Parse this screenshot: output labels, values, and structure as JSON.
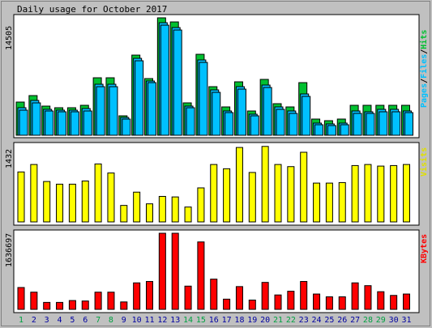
{
  "chart_data": [
    {
      "type": "bar",
      "title": "Daily usage for October 2017",
      "ymax_label": "14505",
      "ylim": [
        0,
        14505
      ],
      "legend": {
        "pages": "Pages",
        "files": "Files",
        "hits": "Hits",
        "sep": "/"
      },
      "categories": [
        "1",
        "2",
        "3",
        "4",
        "5",
        "6",
        "7",
        "8",
        "9",
        "10",
        "11",
        "12",
        "13",
        "14",
        "15",
        "16",
        "17",
        "18",
        "19",
        "20",
        "21",
        "22",
        "23",
        "24",
        "25",
        "26",
        "27",
        "28",
        "29",
        "30",
        "31"
      ],
      "weekend_days": [
        "1",
        "7",
        "8",
        "14",
        "15",
        "21",
        "22",
        "28",
        "29"
      ],
      "series": [
        {
          "name": "Hits",
          "values": [
            4100,
            4900,
            3600,
            3400,
            3400,
            3700,
            7100,
            7100,
            2400,
            9900,
            7000,
            14505,
            14000,
            4000,
            10000,
            6000,
            3500,
            6600,
            3000,
            6900,
            3900,
            3500,
            6500,
            2000,
            1800,
            2000,
            3700,
            3700,
            3700,
            3700,
            3700
          ]
        },
        {
          "name": "Files",
          "values": [
            3400,
            4300,
            3200,
            3100,
            3100,
            3300,
            6300,
            6300,
            2200,
            9500,
            6700,
            13900,
            13300,
            3600,
            9300,
            5600,
            3000,
            6000,
            2600,
            6200,
            3500,
            3000,
            5100,
            1500,
            1400,
            1500,
            3000,
            2900,
            3200,
            3200,
            3000
          ]
        },
        {
          "name": "Pages",
          "values": [
            3100,
            4000,
            3000,
            2900,
            2900,
            3000,
            6000,
            6000,
            2000,
            9200,
            6500,
            13600,
            13000,
            3400,
            9000,
            5300,
            2800,
            5700,
            2400,
            5900,
            3200,
            2700,
            4800,
            1300,
            1200,
            1300,
            2700,
            2700,
            2900,
            2900,
            2800
          ]
        }
      ]
    },
    {
      "type": "bar",
      "ymax_label": "1432",
      "ylim": [
        0,
        1432
      ],
      "legend": "Visits",
      "categories": [
        "1",
        "2",
        "3",
        "4",
        "5",
        "6",
        "7",
        "8",
        "9",
        "10",
        "11",
        "12",
        "13",
        "14",
        "15",
        "16",
        "17",
        "18",
        "19",
        "20",
        "21",
        "22",
        "23",
        "24",
        "25",
        "26",
        "27",
        "28",
        "29",
        "30",
        "31"
      ],
      "series": [
        {
          "name": "Visits",
          "values": [
            940,
            1080,
            760,
            710,
            710,
            770,
            1090,
            920,
            310,
            560,
            340,
            480,
            470,
            280,
            640,
            1080,
            1000,
            1400,
            930,
            1420,
            1080,
            1040,
            1310,
            730,
            730,
            740,
            1060,
            1080,
            1050,
            1060,
            1080
          ]
        }
      ]
    },
    {
      "type": "bar",
      "ymax_label": "1636697",
      "ylim": [
        0,
        1636697
      ],
      "legend": "KBytes",
      "categories": [
        "1",
        "2",
        "3",
        "4",
        "5",
        "6",
        "7",
        "8",
        "9",
        "10",
        "11",
        "12",
        "13",
        "14",
        "15",
        "16",
        "17",
        "18",
        "19",
        "20",
        "21",
        "22",
        "23",
        "24",
        "25",
        "26",
        "27",
        "28",
        "29",
        "30",
        "31"
      ],
      "series": [
        {
          "name": "KBytes",
          "values": [
            470000,
            370000,
            150000,
            150000,
            190000,
            180000,
            370000,
            370000,
            160000,
            570000,
            600000,
            1636697,
            1636697,
            500000,
            1450000,
            650000,
            220000,
            490000,
            200000,
            580000,
            310000,
            390000,
            600000,
            330000,
            270000,
            270000,
            570000,
            510000,
            380000,
            300000,
            330000
          ]
        }
      ]
    }
  ],
  "colors": {
    "background": "#c0c0c0",
    "panel": "#ffffff",
    "hits": "#00c030",
    "files": "#00c0ff",
    "pages": "#00c0ff",
    "visits": "#ffff00",
    "kbytes": "#ff0000",
    "weekday_label": "#0000a0",
    "weekend_label": "#00a040"
  }
}
